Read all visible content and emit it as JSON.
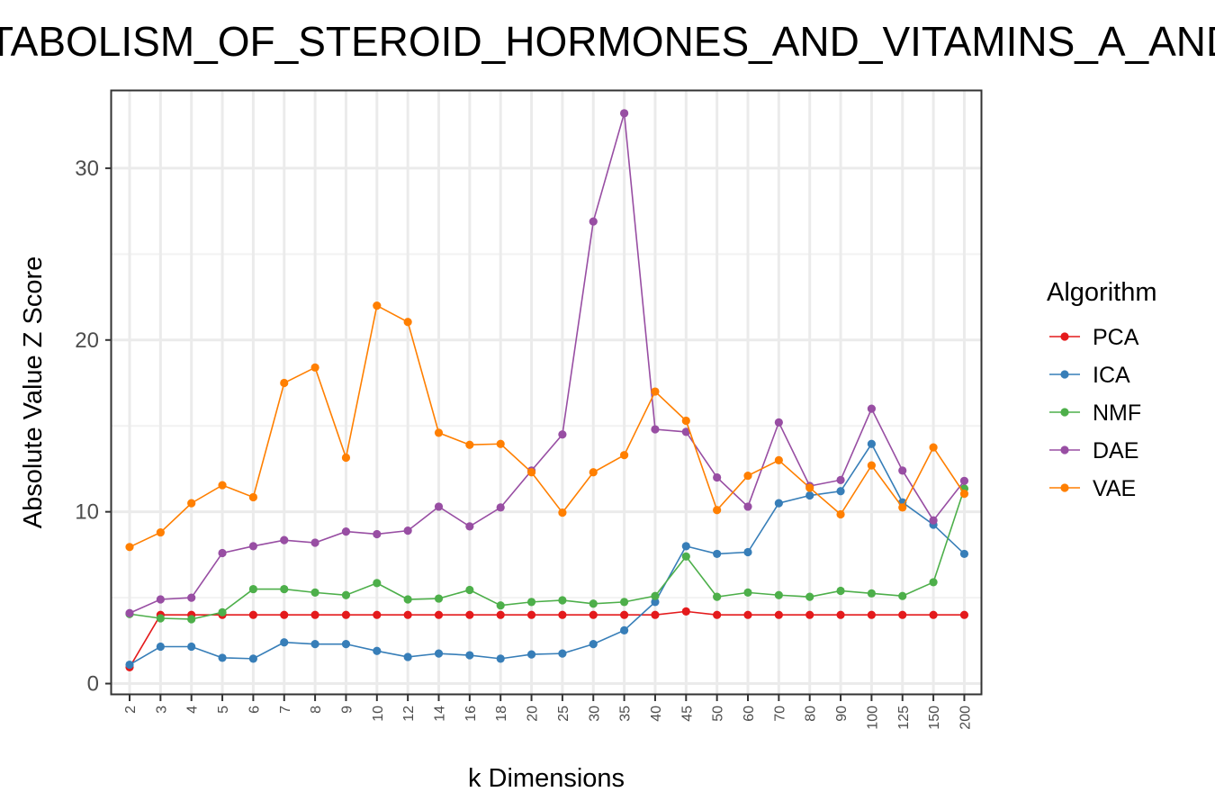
{
  "chart_data": {
    "type": "line",
    "title": "METABOLISM_OF_STEROID_HORMONES_AND_VITAMINS_A_AND_D",
    "xlabel": "k Dimensions",
    "ylabel": "Absolute Value Z Score",
    "categories": [
      "2",
      "3",
      "4",
      "5",
      "6",
      "7",
      "8",
      "9",
      "10",
      "12",
      "14",
      "16",
      "18",
      "20",
      "25",
      "30",
      "35",
      "40",
      "45",
      "50",
      "60",
      "70",
      "80",
      "90",
      "100",
      "125",
      "150",
      "200"
    ],
    "yticks": [
      "0",
      "10",
      "20",
      "30"
    ],
    "ylim": [
      -0.6,
      34.5
    ],
    "grid": true,
    "legend_title": "Algorithm",
    "legend_position": "right",
    "series": [
      {
        "name": "PCA",
        "color": "#e41a1c",
        "values": [
          0.95,
          4.0,
          4.0,
          4.0,
          4.0,
          4.0,
          4.0,
          4.0,
          4.0,
          4.0,
          4.0,
          4.0,
          4.0,
          4.0,
          4.0,
          4.0,
          4.0,
          4.0,
          4.2,
          4.0,
          4.0,
          4.0,
          4.0,
          4.0,
          4.0,
          4.0,
          4.0,
          4.0
        ]
      },
      {
        "name": "ICA",
        "color": "#377eb8",
        "values": [
          1.1,
          2.15,
          2.15,
          1.5,
          1.45,
          2.4,
          2.3,
          2.3,
          1.9,
          1.55,
          1.75,
          1.65,
          1.45,
          1.7,
          1.75,
          2.3,
          3.1,
          4.75,
          8.0,
          7.55,
          7.65,
          10.5,
          10.95,
          11.2,
          13.95,
          10.55,
          9.25,
          7.55
        ]
      },
      {
        "name": "NMF",
        "color": "#4daf4a",
        "values": [
          4.05,
          3.8,
          3.75,
          4.15,
          5.5,
          5.5,
          5.3,
          5.15,
          5.85,
          4.9,
          4.95,
          5.45,
          4.55,
          4.75,
          4.85,
          4.65,
          4.75,
          5.1,
          7.4,
          5.05,
          5.3,
          5.15,
          5.05,
          5.4,
          5.25,
          5.1,
          5.9,
          11.35
        ]
      },
      {
        "name": "DAE",
        "color": "#984ea3",
        "values": [
          4.1,
          4.9,
          5.0,
          7.6,
          8.0,
          8.35,
          8.2,
          8.85,
          8.7,
          8.9,
          10.3,
          9.15,
          10.25,
          12.4,
          14.5,
          26.9,
          33.2,
          14.8,
          14.65,
          12.0,
          10.3,
          15.2,
          11.5,
          11.85,
          16.0,
          12.4,
          9.5,
          11.8
        ]
      },
      {
        "name": "VAE",
        "color": "#ff7f00",
        "values": [
          7.95,
          8.8,
          10.5,
          11.55,
          10.85,
          17.5,
          18.4,
          13.15,
          22.0,
          21.05,
          14.6,
          13.9,
          13.95,
          12.3,
          9.95,
          12.3,
          13.3,
          17.0,
          15.3,
          10.1,
          12.1,
          13.0,
          11.4,
          9.85,
          12.7,
          10.25,
          13.75,
          11.05
        ]
      }
    ]
  }
}
